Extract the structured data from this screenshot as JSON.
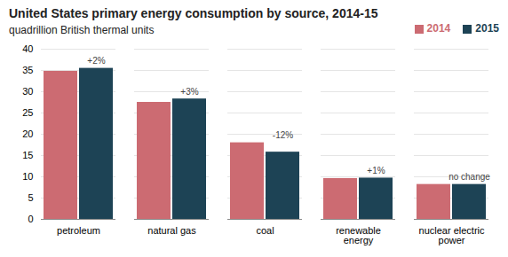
{
  "chart_data": {
    "type": "bar",
    "title": "United States primary energy consumption by source, 2014-15",
    "subtitle": "quadrillion British thermal units",
    "categories": [
      "petroleum",
      "natural gas",
      "coal",
      "renewable\nenergy",
      "nuclear electric\npower"
    ],
    "series": [
      {
        "name": "2014",
        "color": "#cc6b72",
        "values": [
          34.8,
          27.5,
          18.0,
          9.6,
          8.2
        ]
      },
      {
        "name": "2015",
        "color": "#1d4355",
        "values": [
          35.5,
          28.3,
          15.8,
          9.7,
          8.2
        ]
      }
    ],
    "annotations": [
      {
        "text": "+2%",
        "category": "petroleum",
        "series": "2015"
      },
      {
        "text": "+3%",
        "category": "natural gas",
        "series": "2015"
      },
      {
        "text": "-12%",
        "category": "coal",
        "series": "2015"
      },
      {
        "text": "+1%",
        "category": "renewable\nenergy",
        "series": "2015"
      },
      {
        "text": "no change",
        "category": "nuclear electric\npower",
        "series": "2015"
      }
    ],
    "ylim": [
      0,
      40
    ],
    "yticks": [
      0,
      5,
      10,
      15,
      20,
      25,
      30,
      35,
      40
    ],
    "grid": true,
    "legend": "upper right"
  }
}
